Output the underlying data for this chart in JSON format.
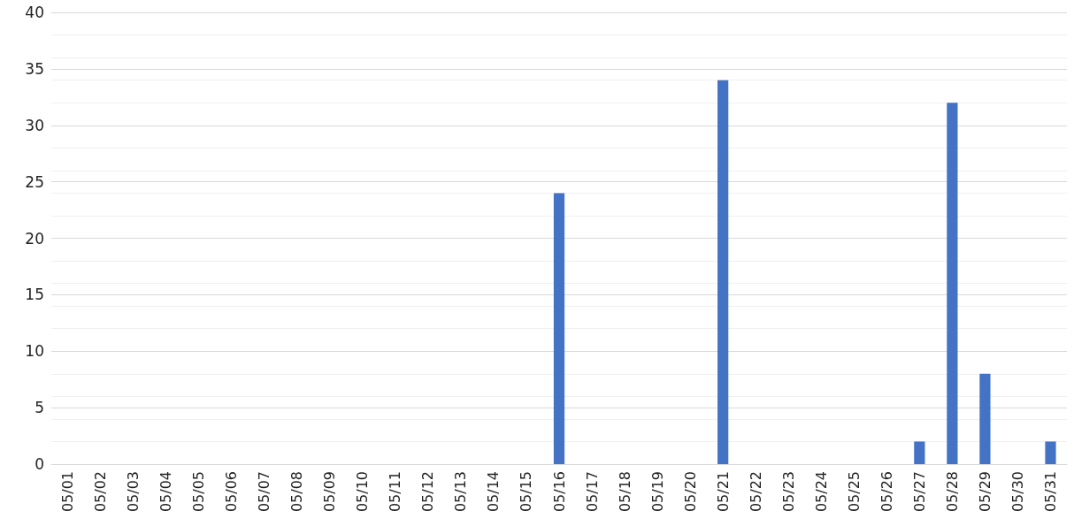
{
  "chart_data": {
    "type": "bar",
    "categories": [
      "05/01",
      "05/02",
      "05/03",
      "05/04",
      "05/05",
      "05/06",
      "05/07",
      "05/08",
      "05/09",
      "05/10",
      "05/11",
      "05/12",
      "05/13",
      "05/14",
      "05/15",
      "05/16",
      "05/17",
      "05/18",
      "05/19",
      "05/20",
      "05/21",
      "05/22",
      "05/23",
      "05/24",
      "05/25",
      "05/26",
      "05/27",
      "05/28",
      "05/29",
      "05/30",
      "05/31"
    ],
    "values": [
      0,
      0,
      0,
      0,
      0,
      0,
      0,
      0,
      0,
      0,
      0,
      0,
      0,
      0,
      0,
      24,
      0,
      0,
      0,
      0,
      34,
      0,
      0,
      0,
      0,
      0,
      2,
      32,
      8,
      0,
      2
    ],
    "color": "#4472c4",
    "ylim": [
      0,
      40
    ],
    "yticks": [
      0,
      5,
      10,
      15,
      20,
      25,
      30,
      35,
      40
    ],
    "grid": true
  }
}
